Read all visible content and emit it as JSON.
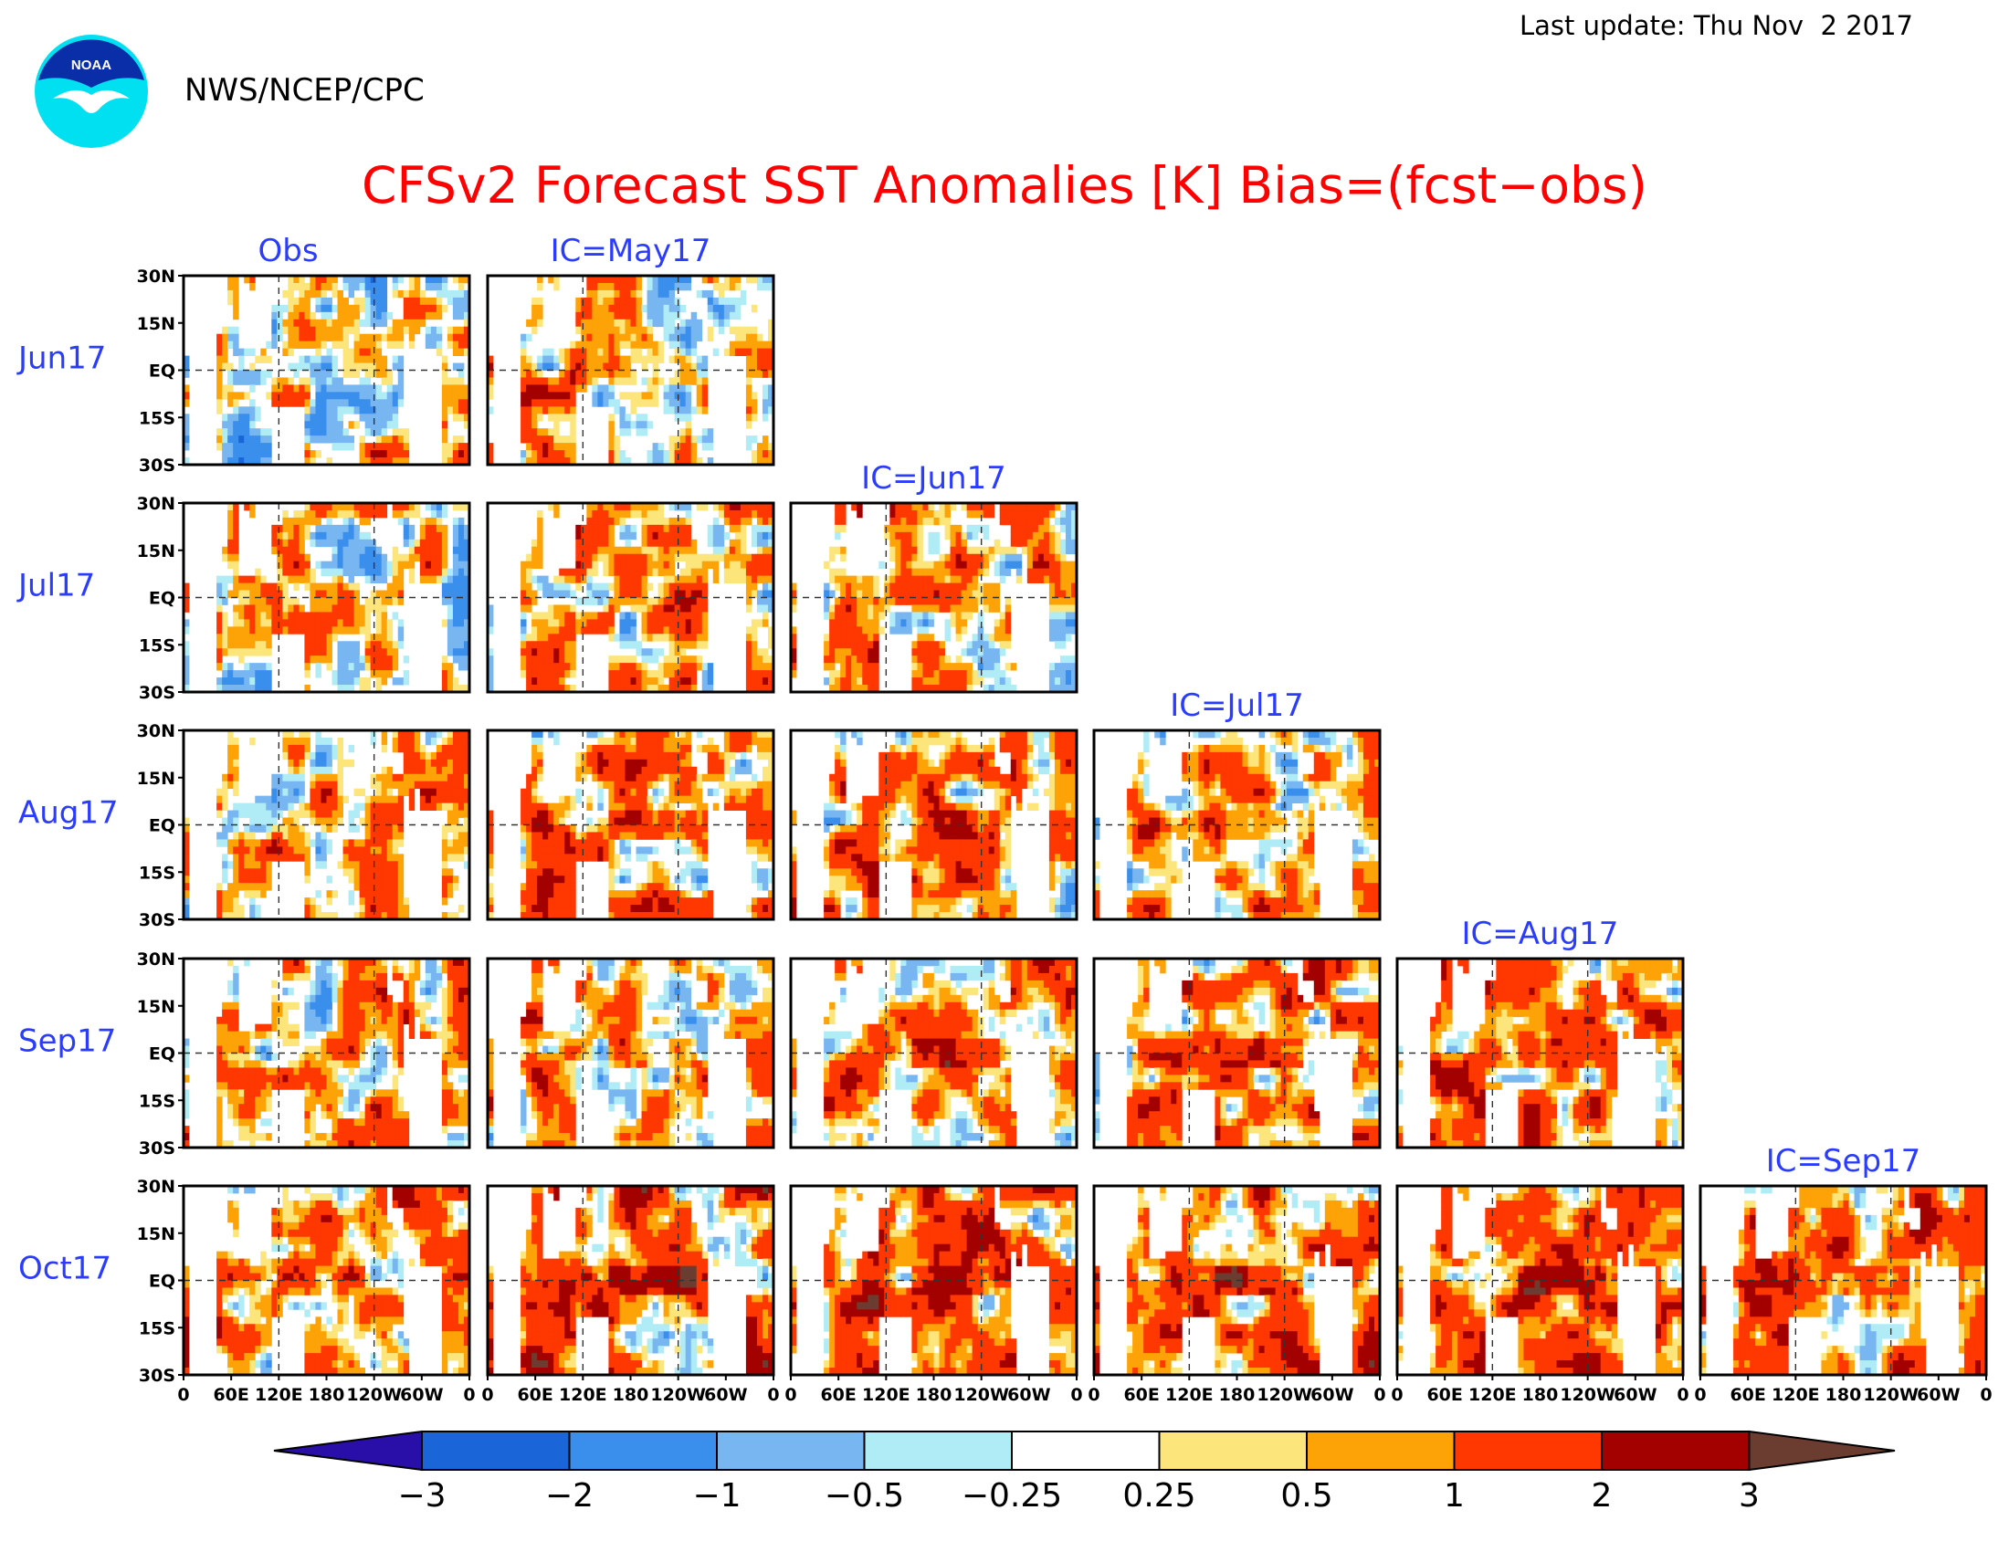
{
  "header": {
    "agency": "NWS/NCEP/CPC",
    "logo_text": "NOAA",
    "last_update": "Last update: Thu Nov  2 2017",
    "title": "CFSv2 Forecast SST Anomalies [K] Bias=(fcst−obs)"
  },
  "colors": {
    "title": "#ff0000",
    "labels": "#2a3cff",
    "logo_circle": "#00e0f0",
    "logo_cap": "#0a2ea8",
    "levels": [
      "#2a0ea8",
      "#1a66d8",
      "#3a8eec",
      "#78b6f2",
      "#b0ecf6",
      "#ffffff",
      "#fce57a",
      "#fda207",
      "#ff3700",
      "#a30000",
      "#6b3d30"
    ]
  },
  "chart_data": {
    "type": "heatmap",
    "variable": "SST anomaly bias (K)",
    "columns": [
      "Obs",
      "IC=May17",
      "IC=Jun17",
      "IC=Jul17",
      "IC=Aug17",
      "IC=Sep17"
    ],
    "rows": [
      "Jun17",
      "Jul17",
      "Aug17",
      "Sep17",
      "Oct17"
    ],
    "panels": [
      {
        "row": "Jun17",
        "column": "Obs"
      },
      {
        "row": "Jun17",
        "column": "IC=May17"
      },
      {
        "row": "Jul17",
        "column": "Obs"
      },
      {
        "row": "Jul17",
        "column": "IC=May17"
      },
      {
        "row": "Jul17",
        "column": "IC=Jun17"
      },
      {
        "row": "Aug17",
        "column": "Obs"
      },
      {
        "row": "Aug17",
        "column": "IC=May17"
      },
      {
        "row": "Aug17",
        "column": "IC=Jun17"
      },
      {
        "row": "Aug17",
        "column": "IC=Jul17"
      },
      {
        "row": "Sep17",
        "column": "Obs"
      },
      {
        "row": "Sep17",
        "column": "IC=May17"
      },
      {
        "row": "Sep17",
        "column": "IC=Jun17"
      },
      {
        "row": "Sep17",
        "column": "IC=Jul17"
      },
      {
        "row": "Sep17",
        "column": "IC=Aug17"
      },
      {
        "row": "Oct17",
        "column": "Obs"
      },
      {
        "row": "Oct17",
        "column": "IC=May17"
      },
      {
        "row": "Oct17",
        "column": "IC=Jun17"
      },
      {
        "row": "Oct17",
        "column": "IC=Jul17"
      },
      {
        "row": "Oct17",
        "column": "IC=Aug17"
      },
      {
        "row": "Oct17",
        "column": "IC=Sep17"
      }
    ],
    "x_ticks": [
      "0",
      "60E",
      "120E",
      "180",
      "120W",
      "60W",
      "0"
    ],
    "y_ticks": [
      "30N",
      "15N",
      "EQ",
      "15S",
      "30S"
    ],
    "xlim_deg_east": [
      0,
      360
    ],
    "ylim_deg_north": [
      -30,
      30
    ],
    "colorbar": {
      "levels": [
        -3,
        -2,
        -1,
        -0.5,
        -0.25,
        0.25,
        0.5,
        1,
        2,
        3
      ],
      "labels": [
        "−3",
        "−2",
        "−1",
        "−0.5",
        "−0.25",
        "0.25",
        "0.5",
        "1",
        "2",
        "3"
      ],
      "extend": "both",
      "units": "K"
    },
    "reference_lines": [
      "EQ",
      "120E",
      "120W"
    ]
  }
}
